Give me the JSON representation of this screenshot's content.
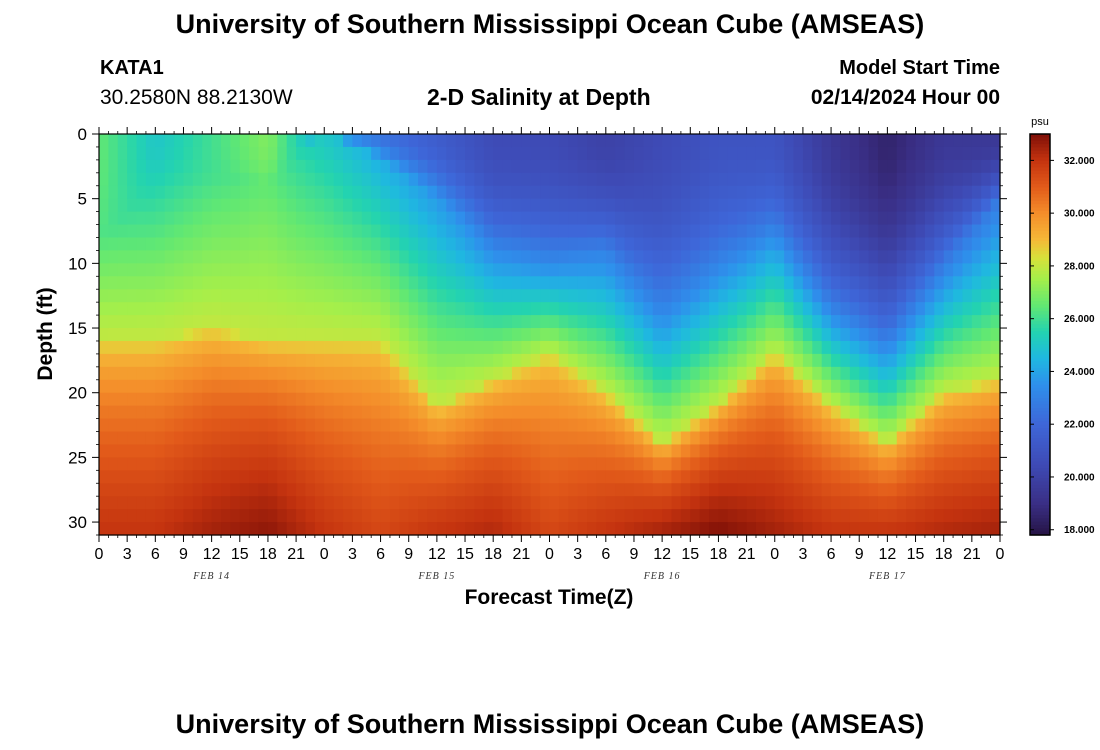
{
  "header": {
    "title": "University of Southern Mississippi Ocean Cube (AMSEAS)",
    "station_id": "KATA1",
    "coordinates": "30.2580N  88.2130W",
    "model_start_label": "Model Start Time",
    "model_start_value": "02/14/2024 Hour 00"
  },
  "footer": {
    "title": "University of Southern Mississippi Ocean Cube (AMSEAS)"
  },
  "chart_data": {
    "type": "heatmap",
    "title": "2-D Salinity at Depth",
    "xlabel": "Forecast Time(Z)",
    "ylabel": "Depth (ft)",
    "x_range_hours": [
      0,
      96
    ],
    "x_tick_step_hours": 3,
    "x_tick_labels": [
      "0",
      "3",
      "6",
      "9",
      "12",
      "15",
      "18",
      "21",
      "0",
      "3",
      "6",
      "9",
      "12",
      "15",
      "18",
      "21",
      "0",
      "3",
      "6",
      "9",
      "12",
      "15",
      "18",
      "21",
      "0",
      "3",
      "6",
      "9",
      "12",
      "15",
      "18",
      "21",
      "0"
    ],
    "date_labels": [
      {
        "label": "FEB 14",
        "hour": 12
      },
      {
        "label": "FEB 15",
        "hour": 36
      },
      {
        "label": "FEB 16",
        "hour": 60
      },
      {
        "label": "FEB 17",
        "hour": 84
      }
    ],
    "y_range_ft": [
      0,
      31
    ],
    "y_ticks": [
      0,
      5,
      10,
      15,
      20,
      25,
      30
    ],
    "y_tick_labels": [
      "0",
      "5",
      "10",
      "15",
      "20",
      "25",
      "30"
    ],
    "depth_levels_ft": [
      0,
      1,
      2,
      3,
      4,
      5,
      6,
      7,
      8,
      9,
      10,
      11,
      12,
      13,
      14,
      15,
      16,
      17,
      18,
      19,
      20,
      21,
      22,
      23,
      24,
      25,
      26,
      27,
      28,
      29,
      30,
      31
    ],
    "time_hours": [
      0,
      6,
      12,
      18,
      24,
      30,
      36,
      42,
      48,
      54,
      60,
      66,
      72,
      78,
      84,
      90,
      96
    ],
    "halocline_top_ft": [
      8,
      4,
      3,
      4,
      0,
      2,
      5,
      9,
      10,
      9,
      14,
      11,
      8,
      13,
      15,
      10,
      5
    ],
    "halocline_bottom_ft": [
      16,
      16,
      15,
      16,
      16,
      16,
      21,
      19,
      17,
      20,
      24,
      21,
      17,
      21,
      24,
      20,
      19
    ],
    "surface_salinity_psu": [
      26.5,
      25.0,
      26.0,
      27.0,
      24.0,
      22.5,
      21.5,
      20.5,
      20.5,
      20.0,
      20.5,
      21.0,
      21.0,
      19.5,
      18.5,
      19.5,
      19.5
    ],
    "bottom_salinity_psu": [
      32.0,
      32.0,
      32.5,
      32.8,
      32.0,
      31.5,
      32.0,
      32.3,
      31.5,
      32.0,
      32.5,
      33.0,
      32.5,
      32.0,
      32.0,
      32.3,
      32.5
    ],
    "colorbar": {
      "unit": "psu",
      "min": 17.8,
      "max": 33.0,
      "ticks": [
        18,
        20,
        22,
        24,
        26,
        28,
        30,
        32
      ],
      "tick_labels": [
        "18.000",
        "20.000",
        "22.000",
        "24.000",
        "26.000",
        "28.000",
        "30.000",
        "32.000"
      ]
    },
    "colormap_stops": [
      {
        "v": 17.8,
        "c": "#261445"
      },
      {
        "v": 19.0,
        "c": "#3a2f86"
      },
      {
        "v": 20.5,
        "c": "#3e4bb6"
      },
      {
        "v": 22.0,
        "c": "#3e66d8"
      },
      {
        "v": 23.5,
        "c": "#2e90ec"
      },
      {
        "v": 24.5,
        "c": "#1fb8e0"
      },
      {
        "v": 25.5,
        "c": "#23d3b0"
      },
      {
        "v": 26.5,
        "c": "#62e872"
      },
      {
        "v": 27.5,
        "c": "#a5ef4a"
      },
      {
        "v": 28.3,
        "c": "#d7e13a"
      },
      {
        "v": 29.0,
        "c": "#f5b837"
      },
      {
        "v": 30.0,
        "c": "#f48d2a"
      },
      {
        "v": 31.0,
        "c": "#e25a1a"
      },
      {
        "v": 32.0,
        "c": "#c4330f"
      },
      {
        "v": 33.0,
        "c": "#7e0f07"
      }
    ]
  }
}
